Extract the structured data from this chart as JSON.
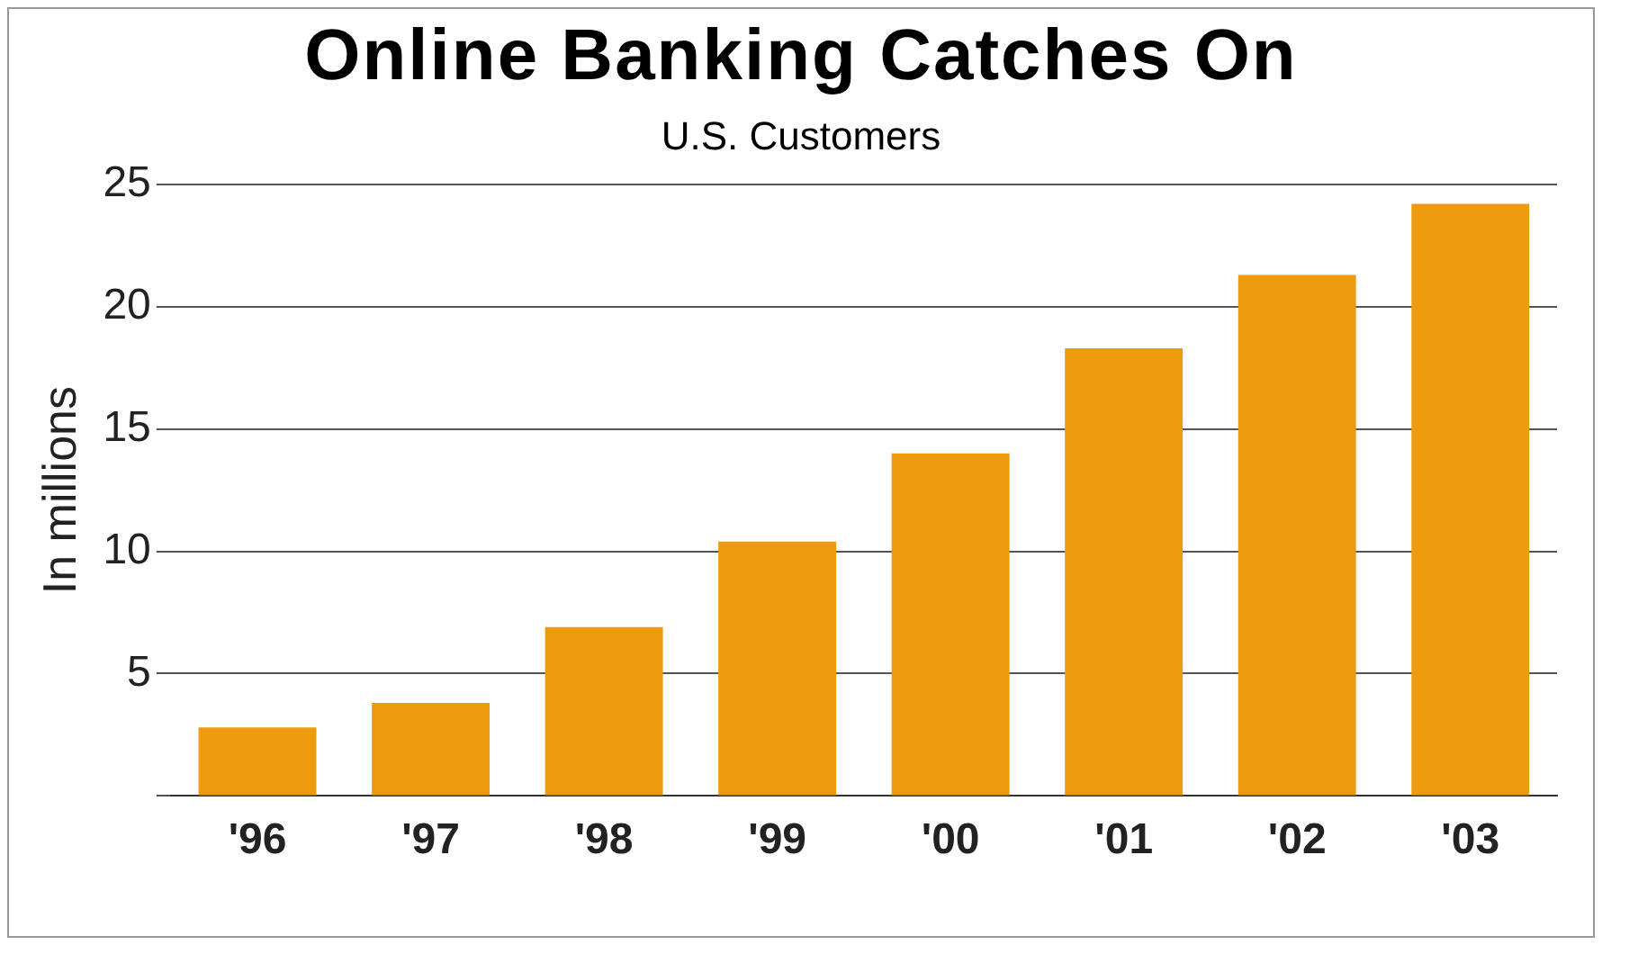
{
  "chart_data": {
    "type": "bar",
    "title": "Online Banking Catches On",
    "subtitle": "U.S. Customers",
    "ylabel": "In millions",
    "categories": [
      "'96",
      "'97",
      "'98",
      "'99",
      "'00",
      "'01",
      "'02",
      "'03"
    ],
    "values": [
      2.8,
      3.8,
      6.9,
      10.4,
      14.0,
      18.3,
      21.3,
      24.2
    ],
    "color": "#ee9a0e",
    "ylim": [
      0,
      25
    ],
    "yticks": [
      {
        "value": 0,
        "label": null
      },
      5,
      10,
      15,
      20,
      25
    ],
    "grid": "y",
    "legend": false
  }
}
